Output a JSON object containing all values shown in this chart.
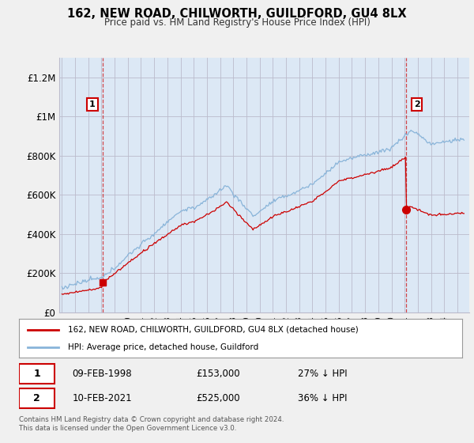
{
  "title": "162, NEW ROAD, CHILWORTH, GUILDFORD, GU4 8LX",
  "subtitle": "Price paid vs. HM Land Registry's House Price Index (HPI)",
  "sale1_date": "09-FEB-1998",
  "sale1_price": 153000,
  "sale1_label": "27% ↓ HPI",
  "sale2_date": "10-FEB-2021",
  "sale2_price": 525000,
  "sale2_label": "36% ↓ HPI",
  "legend1": "162, NEW ROAD, CHILWORTH, GUILDFORD, GU4 8LX (detached house)",
  "legend2": "HPI: Average price, detached house, Guildford",
  "footnote": "Contains HM Land Registry data © Crown copyright and database right 2024.\nThis data is licensed under the Open Government Licence v3.0.",
  "hpi_color": "#89b4d9",
  "property_color": "#cc0000",
  "vline_color": "#cc0000",
  "ylim": [
    0,
    1300000
  ],
  "yticks": [
    0,
    200000,
    400000,
    600000,
    800000,
    1000000,
    1200000
  ],
  "ytick_labels": [
    "£0",
    "£200K",
    "£400K",
    "£600K",
    "£800K",
    "£1M",
    "£1.2M"
  ],
  "background_color": "#f0f0f0",
  "plot_bg_color": "#dce8f5",
  "grid_color": "#bbbbcc",
  "sale1_x": 1998.12,
  "sale2_x": 2021.12,
  "xmin": 1994.8,
  "xmax": 2025.9
}
